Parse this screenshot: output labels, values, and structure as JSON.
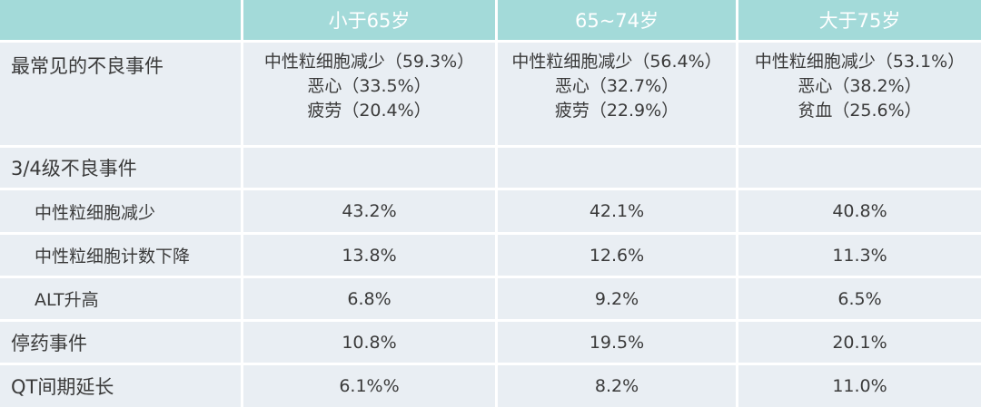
{
  "table": {
    "columns": [
      "小于65岁",
      "65~74岁",
      "大于75岁"
    ],
    "rows": [
      {
        "label": "最常见的不良事件",
        "cells": [
          [
            "中性粒细胞减少（59.3%）",
            "恶心（33.5%）",
            "疲劳（20.4%）"
          ],
          [
            "中性粒细胞减少（56.4%）",
            "恶心（32.7%）",
            "疲劳（22.9%）"
          ],
          [
            "中性粒细胞减少（53.1%）",
            "恶心（38.2%）",
            "贫血（25.6%）"
          ]
        ]
      },
      {
        "label": "3/4级不良事件"
      },
      {
        "label": "中性粒细胞减少",
        "cells": [
          "43.2%",
          "42.1%",
          "40.8%"
        ]
      },
      {
        "label": "中性粒细胞计数下降",
        "cells": [
          "13.8%",
          "12.6%",
          "11.3%"
        ]
      },
      {
        "label": "ALT升高",
        "cells": [
          "6.8%",
          "9.2%",
          "6.5%"
        ]
      },
      {
        "label": "停药事件",
        "cells": [
          "10.8%",
          "19.5%",
          "20.1%"
        ]
      },
      {
        "label": "QT间期延长",
        "cells": [
          "6.1%%",
          "8.2%",
          "11.0%"
        ]
      }
    ]
  }
}
